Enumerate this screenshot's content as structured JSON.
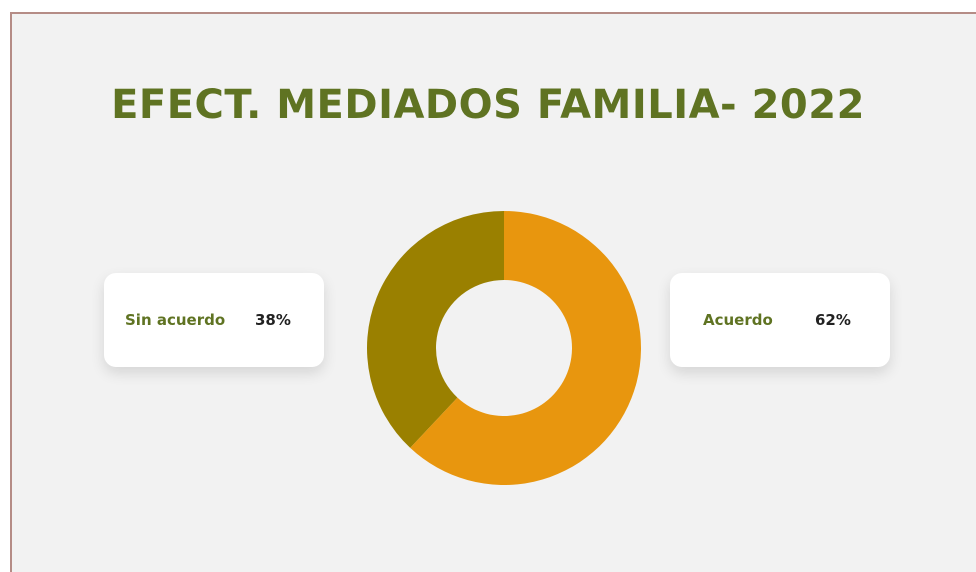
{
  "chart_data": {
    "type": "donut",
    "title": "EFECT. MEDIADOS FAMILIA- 2022",
    "categories": [
      "Sin acuerdo",
      "Acuerdo"
    ],
    "values": [
      38,
      62
    ],
    "value_labels": [
      "38%",
      "62%"
    ],
    "colors": [
      "#9a8000",
      "#e8960e"
    ]
  }
}
